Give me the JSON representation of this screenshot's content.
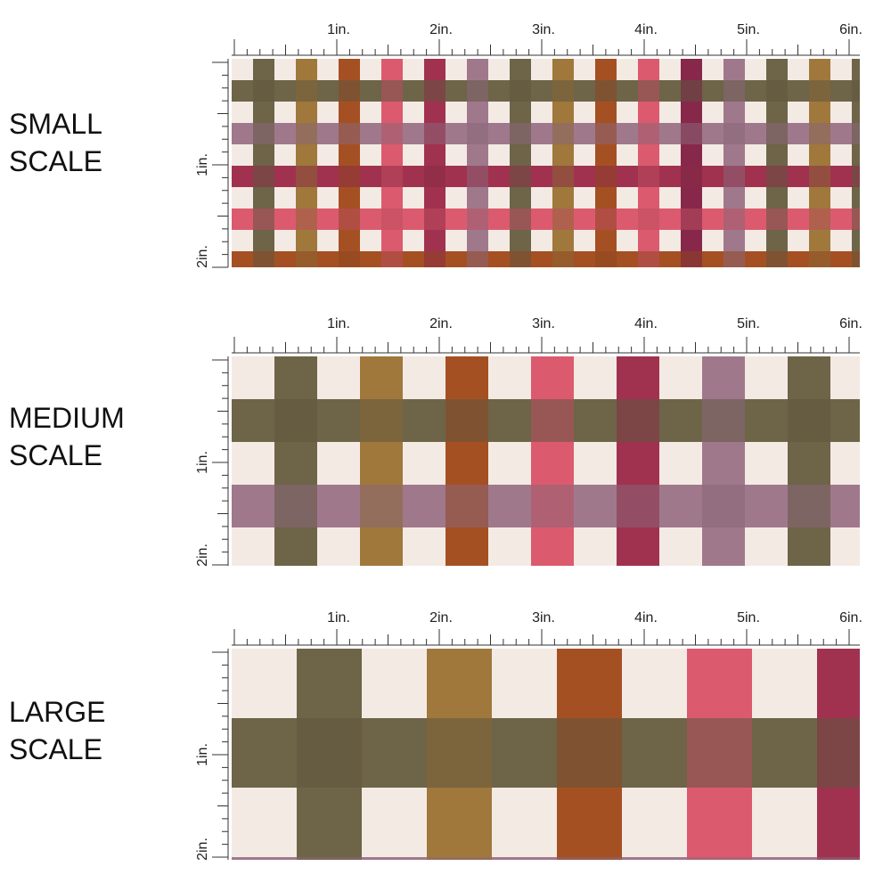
{
  "panels": [
    {
      "label": [
        "SMALL",
        "SCALE"
      ],
      "ruler_x": [
        "1in.",
        "2in.",
        "3in.",
        "4in.",
        "5in.",
        "6in."
      ],
      "ruler_y": [
        "1in.",
        "2in."
      ]
    },
    {
      "label": [
        "MEDIUM",
        "SCALE"
      ],
      "ruler_x": [
        "1in.",
        "2in.",
        "3in.",
        "4in.",
        "5in.",
        "6in."
      ],
      "ruler_y": [
        "1in.",
        "2in."
      ]
    },
    {
      "label": [
        "LARGE",
        "SCALE"
      ],
      "ruler_x": [
        "1in.",
        "2in.",
        "3in.",
        "4in.",
        "5in.",
        "6in."
      ],
      "ruler_y": [
        "1in.",
        "2in."
      ]
    }
  ]
}
